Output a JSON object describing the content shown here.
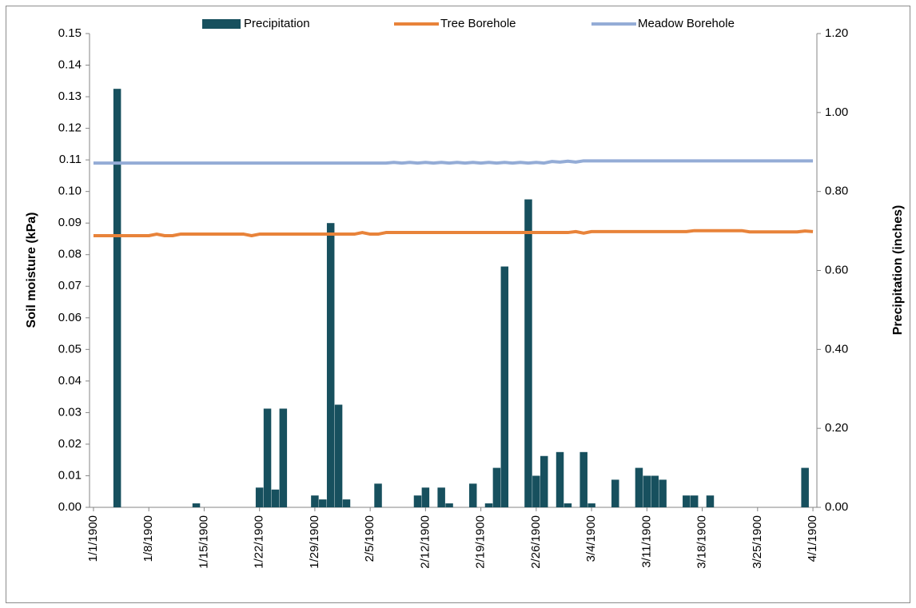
{
  "chart_data": {
    "type": "bar-line",
    "y_label": "Soil moisture (kPa)",
    "y2_label": "Precipitation (inches)",
    "legend": "top",
    "categories": [
      "1/1/1900",
      null,
      null,
      null,
      null,
      null,
      null,
      "1/8/1900",
      null,
      null,
      null,
      null,
      null,
      null,
      "1/15/1900",
      null,
      null,
      null,
      null,
      null,
      null,
      "1/22/1900",
      null,
      null,
      null,
      null,
      null,
      null,
      "1/29/1900",
      null,
      null,
      null,
      null,
      null,
      null,
      "2/5/1900",
      null,
      null,
      null,
      null,
      null,
      null,
      "2/12/1900",
      null,
      null,
      null,
      null,
      null,
      null,
      "2/19/1900",
      null,
      null,
      null,
      null,
      null,
      null,
      "2/26/1900",
      null,
      null,
      null,
      null,
      null,
      null,
      "3/4/1900",
      null,
      null,
      null,
      null,
      null,
      null,
      "3/11/1900",
      null,
      null,
      null,
      null,
      null,
      null,
      "3/18/1900",
      null,
      null,
      null,
      null,
      null,
      null,
      "3/25/1900",
      null,
      null,
      null,
      null,
      null,
      null,
      "4/1/1900"
    ],
    "series": [
      {
        "name": "Precipitation",
        "kind": "bar",
        "axis": "y2",
        "color": "#17505e",
        "values": [
          0,
          0,
          0,
          1.06,
          0,
          0,
          0,
          0,
          0,
          0,
          0,
          0,
          0,
          0.01,
          0,
          0,
          0,
          0,
          0,
          0,
          0,
          0.05,
          0.25,
          0.045,
          0.25,
          0,
          0,
          0,
          0.03,
          0.02,
          0.72,
          0.26,
          0.02,
          0,
          0,
          0,
          0.06,
          0,
          0,
          0,
          0,
          0.03,
          0.05,
          0,
          0.05,
          0.01,
          0,
          0,
          0.06,
          0,
          0.01,
          0.1,
          0.61,
          0,
          0,
          0.78,
          0.08,
          0.13,
          0,
          0.14,
          0.01,
          0,
          0.14,
          0.01,
          0,
          0,
          0.07,
          0,
          0,
          0.1,
          0.08,
          0.08,
          0.07,
          0,
          0,
          0.03,
          0.03,
          0,
          0.03,
          0,
          0,
          0,
          0,
          0,
          0,
          0,
          0,
          0,
          0,
          0,
          0.1,
          0
        ]
      },
      {
        "name": "Tree Borehole",
        "kind": "line",
        "color": "#e8833a",
        "values": [
          0.086,
          0.086,
          0.086,
          0.086,
          0.086,
          0.086,
          0.086,
          0.086,
          0.0865,
          0.086,
          0.086,
          0.0865,
          0.0865,
          0.0865,
          0.0865,
          0.0865,
          0.0865,
          0.0865,
          0.0865,
          0.0865,
          0.086,
          0.0865,
          0.0865,
          0.0865,
          0.0865,
          0.0865,
          0.0865,
          0.0865,
          0.0865,
          0.0865,
          0.0865,
          0.0865,
          0.0865,
          0.0865,
          0.087,
          0.0865,
          0.0865,
          0.087,
          0.087,
          0.087,
          0.087,
          0.087,
          0.087,
          0.087,
          0.087,
          0.087,
          0.087,
          0.087,
          0.087,
          0.087,
          0.087,
          0.087,
          0.087,
          0.087,
          0.087,
          0.087,
          0.087,
          0.087,
          0.087,
          0.087,
          0.087,
          0.0873,
          0.0868,
          0.0873,
          0.0873,
          0.0873,
          0.0873,
          0.0873,
          0.0873,
          0.0873,
          0.0873,
          0.0873,
          0.0873,
          0.0873,
          0.0873,
          0.0873,
          0.0876,
          0.0876,
          0.0876,
          0.0876,
          0.0876,
          0.0876,
          0.0876,
          0.0872,
          0.0872,
          0.0872,
          0.0872,
          0.0872,
          0.0872,
          0.0872,
          0.0875,
          0.0873
        ]
      },
      {
        "name": "Meadow Borehole",
        "kind": "line",
        "color": "#94acd6",
        "values": [
          0.109,
          0.109,
          0.109,
          0.109,
          0.109,
          0.109,
          0.109,
          0.109,
          0.109,
          0.109,
          0.109,
          0.109,
          0.109,
          0.109,
          0.109,
          0.109,
          0.109,
          0.109,
          0.109,
          0.109,
          0.109,
          0.109,
          0.109,
          0.109,
          0.109,
          0.109,
          0.109,
          0.109,
          0.109,
          0.109,
          0.109,
          0.109,
          0.109,
          0.109,
          0.109,
          0.109,
          0.109,
          0.109,
          0.1092,
          0.109,
          0.1092,
          0.109,
          0.1092,
          0.109,
          0.1092,
          0.109,
          0.1092,
          0.109,
          0.1092,
          0.109,
          0.1092,
          0.109,
          0.1092,
          0.109,
          0.1092,
          0.109,
          0.1092,
          0.109,
          0.1095,
          0.1093,
          0.1096,
          0.1093,
          0.1097,
          0.1097,
          0.1097,
          0.1097,
          0.1097,
          0.1097,
          0.1097,
          0.1097,
          0.1097,
          0.1097,
          0.1097,
          0.1097,
          0.1097,
          0.1097,
          0.1097,
          0.1097,
          0.1097,
          0.1097,
          0.1097,
          0.1097,
          0.1097,
          0.1097,
          0.1097,
          0.1097,
          0.1097,
          0.1097,
          0.1097,
          0.1097,
          0.1097,
          0.1097
        ]
      }
    ],
    "ylim": [
      0,
      0.15
    ],
    "yticks": [
      {
        "value": 0,
        "label": "0.00"
      },
      {
        "value": 0.01,
        "label": "0.01"
      },
      {
        "value": 0.02,
        "label": "0.02"
      },
      {
        "value": 0.03,
        "label": "0.03"
      },
      {
        "value": 0.04,
        "label": "0.04"
      },
      {
        "value": 0.05,
        "label": "0.05"
      },
      {
        "value": 0.06,
        "label": "0.06"
      },
      {
        "value": 0.07,
        "label": "0.07"
      },
      {
        "value": 0.08,
        "label": "0.08"
      },
      {
        "value": 0.09,
        "label": "0.09"
      },
      {
        "value": 0.1,
        "label": "0.10"
      },
      {
        "value": 0.11,
        "label": "0.11"
      },
      {
        "value": 0.12,
        "label": "0.12"
      },
      {
        "value": 0.13,
        "label": "0.13"
      },
      {
        "value": 0.14,
        "label": "0.14"
      },
      {
        "value": 0.15,
        "label": "0.15"
      }
    ],
    "y2lim": [
      0,
      1.2
    ],
    "y2ticks": [
      {
        "value": 0,
        "label": "0.00"
      },
      {
        "value": 0.2,
        "label": "0.20"
      },
      {
        "value": 0.4,
        "label": "0.40"
      },
      {
        "value": 0.6,
        "label": "0.60"
      },
      {
        "value": 0.8,
        "label": "0.80"
      },
      {
        "value": 1,
        "label": "1.00"
      },
      {
        "value": 1.2,
        "label": "1.20"
      }
    ]
  }
}
